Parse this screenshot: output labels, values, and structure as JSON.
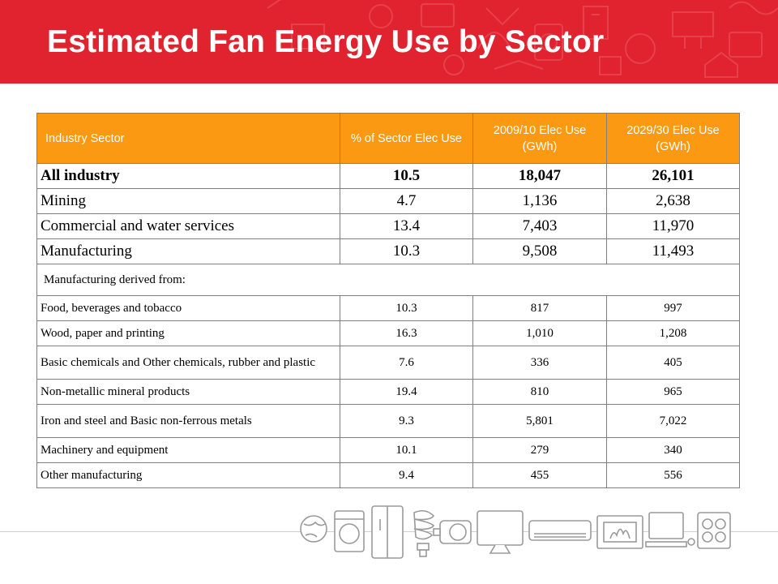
{
  "slide": {
    "title": "Estimated Fan Energy Use by Sector"
  },
  "table": {
    "headers": {
      "sector": "Industry Sector",
      "pct": "% of Sector Elec Use",
      "use2009": "2009/10 Elec Use (GWh)",
      "use2029": "2029/30 Elec Use (GWh)"
    },
    "main_rows": [
      {
        "sector": "All industry",
        "pct": "10.5",
        "use2009": "18,047",
        "use2029": "26,101"
      },
      {
        "sector": "Mining",
        "pct": "4.7",
        "use2009": "1,136",
        "use2029": "2,638"
      },
      {
        "sector": "Commercial and water services",
        "pct": "13.4",
        "use2009": "7,403",
        "use2029": "11,970"
      },
      {
        "sector": "Manufacturing",
        "pct": "10.3",
        "use2009": "9,508",
        "use2029": "11,493"
      }
    ],
    "section_label": "Manufacturing derived from:",
    "sub_rows": [
      {
        "sector": "Food, beverages and tobacco",
        "pct": "10.3",
        "use2009": "817",
        "use2029": "997"
      },
      {
        "sector": "Wood, paper and printing",
        "pct": "16.3",
        "use2009": "1,010",
        "use2029": "1,208"
      },
      {
        "sector": "Basic chemicals and Other chemicals, rubber and plastic",
        "pct": "7.6",
        "use2009": "336",
        "use2029": "405"
      },
      {
        "sector": "Non-metallic mineral products",
        "pct": "19.4",
        "use2009": "810",
        "use2029": "965"
      },
      {
        "sector": "Iron and steel and Basic non-ferrous metals",
        "pct": "9.3",
        "use2009": "5,801",
        "use2029": "7,022"
      },
      {
        "sector": "Machinery and equipment",
        "pct": "10.1",
        "use2009": "279",
        "use2029": "340"
      },
      {
        "sector": "Other manufacturing",
        "pct": "9.4",
        "use2009": "455",
        "use2029": "556"
      }
    ]
  },
  "colors": {
    "header_bar": "#e0232e",
    "table_header": "#fb9a12",
    "border": "#7f7f7f"
  },
  "decorations": {
    "appliance_icons": [
      "globe-icon",
      "washing-machine-icon",
      "refrigerator-icon",
      "light-bulb-icon",
      "motor-icon",
      "television-icon",
      "air-conditioner-icon",
      "heater-icon",
      "computer-icon",
      "stove-icon"
    ]
  }
}
